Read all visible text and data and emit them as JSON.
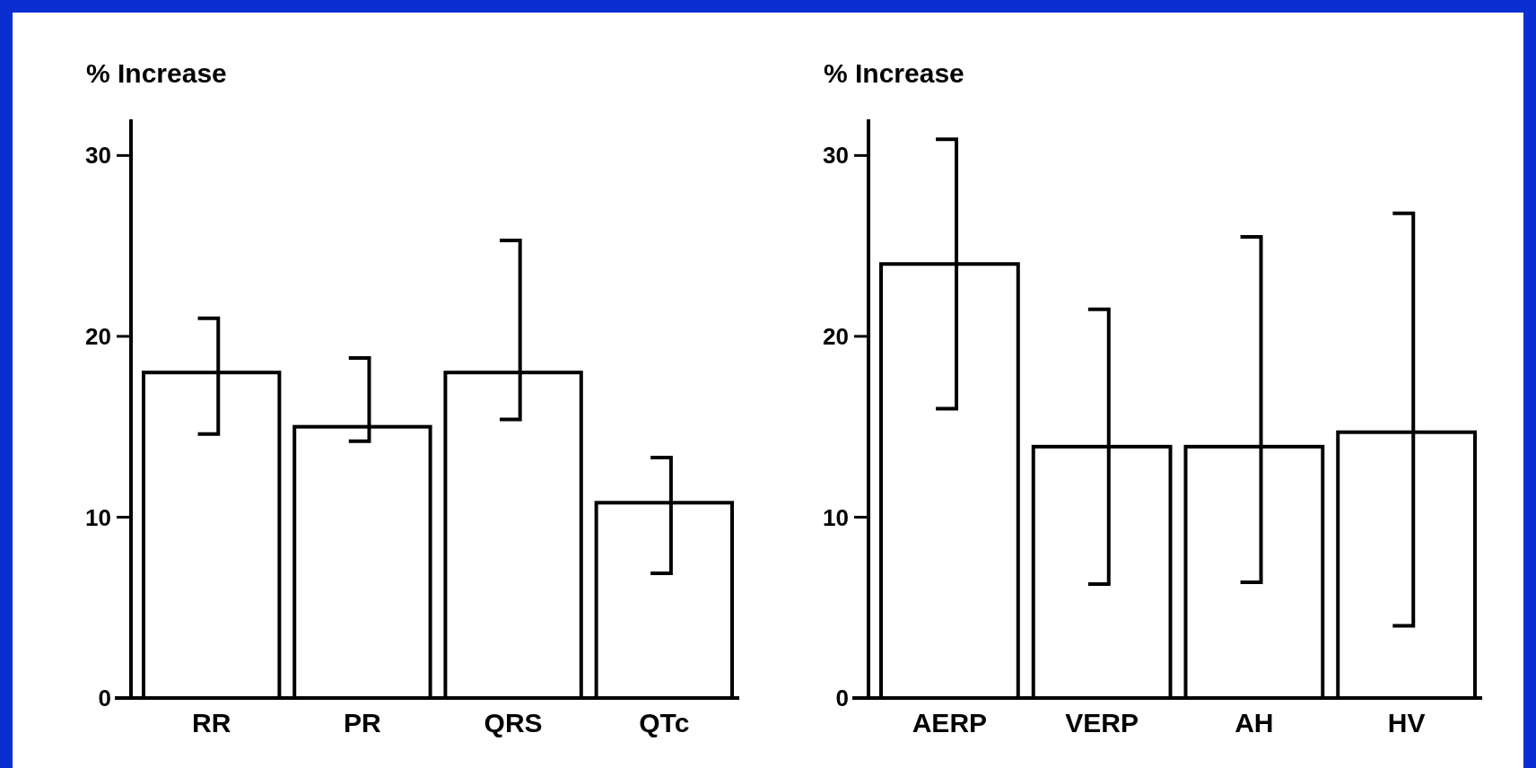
{
  "chart_data": [
    {
      "type": "bar",
      "ylabel": "% Increase",
      "categories": [
        "RR",
        "PR",
        "QRS",
        "QTc"
      ],
      "values": [
        18,
        15,
        18,
        10.8
      ],
      "color": "#000000",
      "errors": [
        [
          14.6,
          21.0
        ],
        [
          14.2,
          18.8
        ],
        [
          15.4,
          25.3
        ],
        [
          6.9,
          13.3
        ]
      ],
      "ylim": [
        0,
        32
      ],
      "yticks": [
        0,
        10,
        20,
        30
      ],
      "grid": false
    },
    {
      "type": "bar",
      "ylabel": "% Increase",
      "categories": [
        "AERP",
        "VERP",
        "AH",
        "HV"
      ],
      "values": [
        24,
        13.9,
        13.9,
        14.7
      ],
      "color": "#000000",
      "errors": [
        [
          16.0,
          30.9
        ],
        [
          6.3,
          21.5
        ],
        [
          6.4,
          25.5
        ],
        [
          4.0,
          26.8
        ]
      ],
      "ylim": [
        0,
        32
      ],
      "yticks": [
        0,
        10,
        20,
        30
      ],
      "grid": false
    }
  ]
}
